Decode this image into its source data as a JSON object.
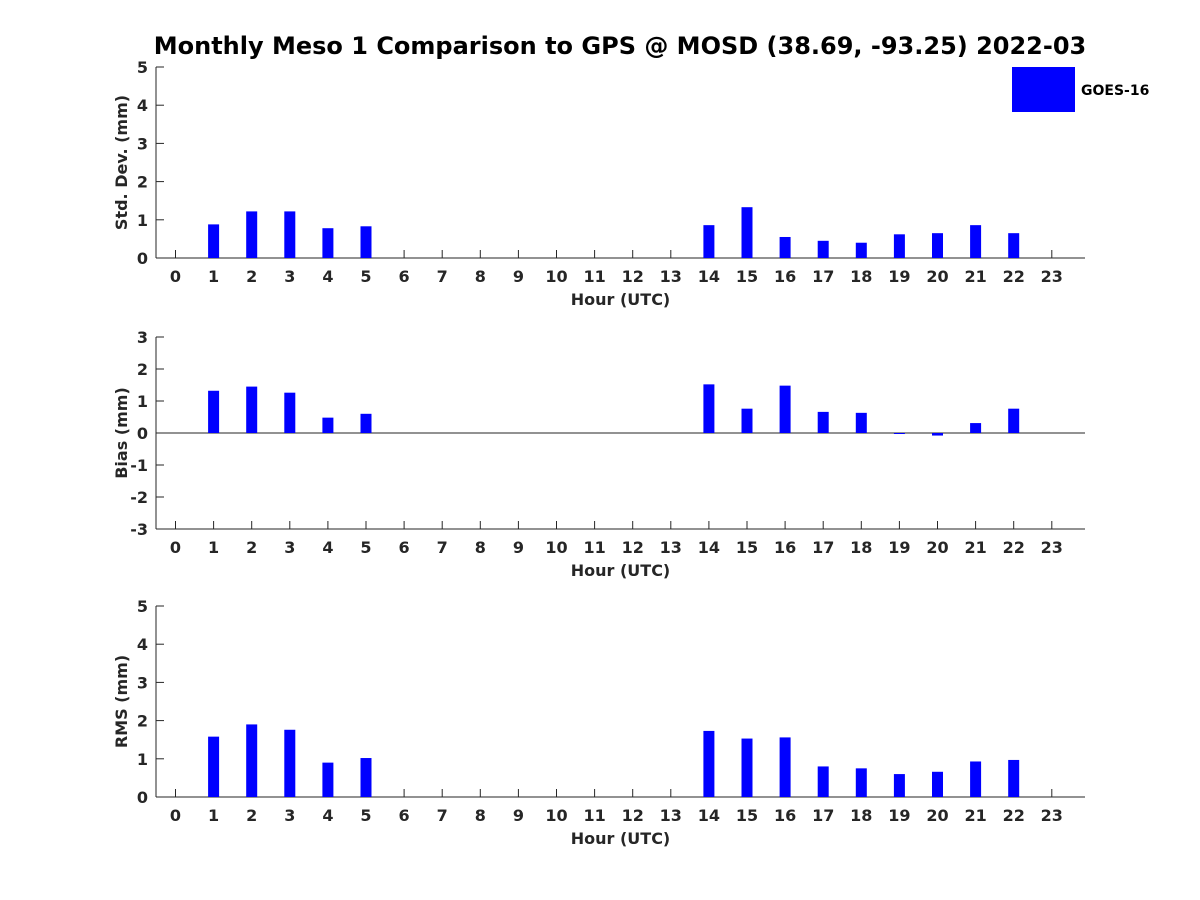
{
  "chart_data": {
    "title": "Monthly Meso 1 Comparison to GPS @ MOSD (38.69, -93.25) 2022-03",
    "legend": {
      "entries": [
        "GOES-16"
      ],
      "placement": "top-right"
    },
    "color": "#0000ff",
    "panels": [
      {
        "type": "bar",
        "ylabel": "Std. Dev. (mm)",
        "xlabel": "Hour (UTC)",
        "ylim": [
          0,
          5
        ],
        "yticks": [
          0,
          1,
          2,
          3,
          4,
          5
        ],
        "categories": [
          0,
          1,
          2,
          3,
          4,
          5,
          6,
          7,
          8,
          9,
          10,
          11,
          12,
          13,
          14,
          15,
          16,
          17,
          18,
          19,
          20,
          21,
          22,
          23
        ],
        "series": [
          {
            "name": "GOES-16",
            "values": [
              null,
              0.88,
              1.22,
              1.22,
              0.78,
              0.83,
              null,
              null,
              null,
              null,
              null,
              null,
              null,
              null,
              0.86,
              1.33,
              0.55,
              0.45,
              0.4,
              0.62,
              0.65,
              0.86,
              0.65,
              null
            ]
          }
        ]
      },
      {
        "type": "bar",
        "ylabel": "Bias (mm)",
        "xlabel": "Hour (UTC)",
        "ylim": [
          -3,
          3
        ],
        "yticks": [
          -3,
          -2,
          -1,
          0,
          1,
          2,
          3
        ],
        "zero_line": true,
        "categories": [
          0,
          1,
          2,
          3,
          4,
          5,
          6,
          7,
          8,
          9,
          10,
          11,
          12,
          13,
          14,
          15,
          16,
          17,
          18,
          19,
          20,
          21,
          22,
          23
        ],
        "series": [
          {
            "name": "GOES-16",
            "values": [
              null,
              1.32,
              1.45,
              1.26,
              0.48,
              0.6,
              null,
              null,
              null,
              null,
              null,
              null,
              null,
              null,
              1.52,
              0.76,
              1.48,
              0.66,
              0.63,
              -0.03,
              -0.08,
              0.31,
              0.76,
              null
            ]
          }
        ]
      },
      {
        "type": "bar",
        "ylabel": "RMS (mm)",
        "xlabel": "Hour (UTC)",
        "ylim": [
          0,
          5
        ],
        "yticks": [
          0,
          1,
          2,
          3,
          4,
          5
        ],
        "categories": [
          0,
          1,
          2,
          3,
          4,
          5,
          6,
          7,
          8,
          9,
          10,
          11,
          12,
          13,
          14,
          15,
          16,
          17,
          18,
          19,
          20,
          21,
          22,
          23
        ],
        "series": [
          {
            "name": "GOES-16",
            "values": [
              null,
              1.58,
              1.9,
              1.76,
              0.9,
              1.02,
              null,
              null,
              null,
              null,
              null,
              null,
              null,
              null,
              1.73,
              1.53,
              1.56,
              0.8,
              0.75,
              0.6,
              0.66,
              0.93,
              0.97,
              null
            ]
          }
        ]
      }
    ]
  }
}
